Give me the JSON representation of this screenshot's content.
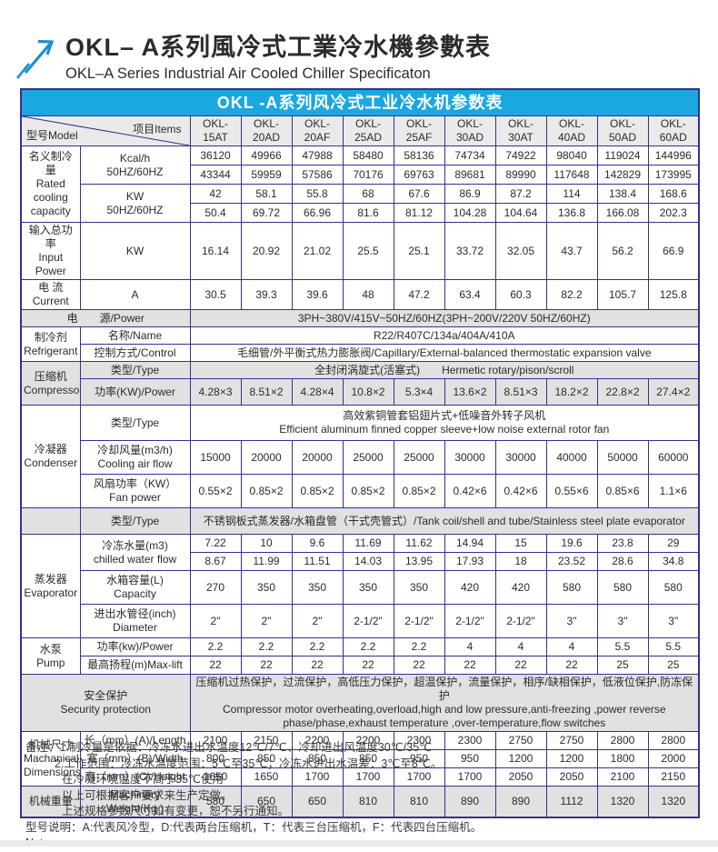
{
  "page": {
    "title_zh": "OKL– A系列風冷式工業冷水機參數表",
    "title_en": "OKL–A Series Industrial Air Cooled Chiller Specificaton"
  },
  "colors": {
    "accent_blue": "#1ba7e0",
    "border_navy": "#32338a",
    "band_gray": "#e1e1e1",
    "logo_blue": "#1a8fd1"
  },
  "table": {
    "banner": "OKL -A系列风冷式工业冷水机参数表",
    "corner": {
      "model": "型号Model",
      "items": "项目Items"
    },
    "models": [
      "OKL-\n15AT",
      "OKL-\n20AD",
      "OKL-\n20AF",
      "OKL-\n25AD",
      "OKL-\n25AF",
      "OKL-\n30AD",
      "OKL-\n30AT",
      "OKL-\n40AD",
      "OKL-\n50AD",
      "OKL-\n60AD"
    ],
    "rated": {
      "cat": "名义制冷量\nRated\ncooling\ncapacity",
      "kcal_label": "Kcal/h\n50HZ/60HZ",
      "kcal_50": [
        "36120",
        "49966",
        "47988",
        "58480",
        "58136",
        "74734",
        "74922",
        "98040",
        "119024",
        "144996"
      ],
      "kcal_60": [
        "43344",
        "59959",
        "57586",
        "70176",
        "69763",
        "89681",
        "89990",
        "117648",
        "142829",
        "173995"
      ],
      "kw_label": "KW\n50HZ/60HZ",
      "kw_50": [
        "42",
        "58.1",
        "55.8",
        "68",
        "67.6",
        "86.9",
        "87.2",
        "114",
        "138.4",
        "168.6"
      ],
      "kw_60": [
        "50.4",
        "69.72",
        "66.96",
        "81.6",
        "81.12",
        "104.28",
        "104.64",
        "136.8",
        "166.08",
        "202.3"
      ]
    },
    "input_power": {
      "cat": "输入总功率\nInput Power",
      "unit": "KW",
      "values": [
        "16.14",
        "20.92",
        "21.02",
        "25.5",
        "25.1",
        "33.72",
        "32.05",
        "43.7",
        "56.2",
        "66.9"
      ]
    },
    "current": {
      "cat": "电 流\nCurrent",
      "unit": "A",
      "values": [
        "30.5",
        "39.3",
        "39.6",
        "48",
        "47.2",
        "63.4",
        "60.3",
        "82.2",
        "105.7",
        "125.8"
      ]
    },
    "power_supply": {
      "label": "电　　源/Power",
      "value": "3PH~380V/415V~50HZ/60HZ(3PH~200V/220V  50HZ/60HZ)"
    },
    "refrigerant": {
      "cat": "制冷剂\nRefrigerant",
      "name_label": "名称/Name",
      "name_value": "R22/R407C/134a/404A/410A",
      "control_label": "控制方式/Control",
      "control_value": "毛细管/外平衡式热力膨胀阀/Capillary/External-balanced thermostatic expansion valve"
    },
    "compressor": {
      "cat": "压缩机\nCompressor",
      "type_label": "类型/Type",
      "type_value": "全封闭涡旋式(活塞式)　　Hermetic rotary/pison/scroll",
      "power_label": "功率(KW)/Power",
      "power_values": [
        "4.28×3",
        "8.51×2",
        "4.28×4",
        "10.8×2",
        "5.3×4",
        "13.6×2",
        "8.51×3",
        "18.2×2",
        "22.8×2",
        "27.4×2"
      ]
    },
    "condenser": {
      "cat": "冷凝器\nCondenser",
      "type_label": "类型/Type",
      "type_value": "高效紫铜管套铝翅片式+低噪音外转子风机\nEfficient aluminum finned copper sleeve+low noise external rotor fan",
      "air_label": "冷却风量(m3/h)\nCooling air flow",
      "air_values": [
        "15000",
        "20000",
        "20000",
        "25000",
        "25000",
        "30000",
        "30000",
        "40000",
        "50000",
        "60000"
      ],
      "fan_label": "风扇功率（KW）\nFan power",
      "fan_values": [
        "0.55×2",
        "0.85×2",
        "0.85×2",
        "0.85×2",
        "0.85×2",
        "0.42×6",
        "0.42×6",
        "0.55×6",
        "0.85×6",
        "1.1×6"
      ]
    },
    "evaporator": {
      "type_label": "类型/Type",
      "type_value": "不锈钢板式蒸发器/水箱盘管（干式壳管式）/Tank coil/shell and tube/Stainless steel plate evaporator",
      "cat": "蒸发器\nEvaporator",
      "chilled_label": "冷冻水量(m3)\nchilled water flow",
      "chilled_50": [
        "7.22",
        "10",
        "9.6",
        "11.69",
        "11.62",
        "14.94",
        "15",
        "19.6",
        "23.8",
        "29"
      ],
      "chilled_60": [
        "8.67",
        "11.99",
        "11.51",
        "14.03",
        "13.95",
        "17.93",
        "18",
        "23.52",
        "28.6",
        "34.8"
      ],
      "tank_label": "水箱容量(L)\nCapacity",
      "tank_values": [
        "270",
        "350",
        "350",
        "350",
        "350",
        "420",
        "420",
        "580",
        "580",
        "580"
      ],
      "dia_label": "进出水管径(inch)\nDiameter",
      "dia_values": [
        "2\"",
        "2\"",
        "2\"",
        "2-1/2\"",
        "2-1/2\"",
        "2-1/2\"",
        "2-1/2\"",
        "3\"",
        "3\"",
        "3\""
      ]
    },
    "pump": {
      "cat": "水泵\nPump",
      "power_label": "功率(kw)/Power",
      "power_values": [
        "2.2",
        "2.2",
        "2.2",
        "2.2",
        "2.2",
        "4",
        "4",
        "4",
        "5.5",
        "5.5"
      ],
      "lift_label": "最高扬程(m)Max-lift",
      "lift_values": [
        "22",
        "22",
        "22",
        "22",
        "22",
        "22",
        "22",
        "22",
        "25",
        "25"
      ]
    },
    "security": {
      "label": "安全保护\nSecurity protection",
      "value": "压缩机过热保护，过流保护，高低压力保护，超温保护，流量保护，相序/缺相保护，低液位保护,防冻保护\nCompressor motor overheating,overload,high and low pressure,anti-freezing ,power reverse\nphase/phase,exhaust temperature ,over-temperature,flow switches"
    },
    "dimensions": {
      "cat": "机械尺寸\nMachanical\nDimensions",
      "length_label": "长（mm）(A)/Length",
      "length_values": [
        "2100",
        "2150",
        "2200",
        "2200",
        "2300",
        "2300",
        "2750",
        "2750",
        "2800",
        "2800"
      ],
      "width_label": "宽（mm）(B)/Width",
      "width_values": [
        "800",
        "850",
        "850",
        "850",
        "950",
        "950",
        "1200",
        "1200",
        "1800",
        "2000"
      ],
      "height_label": "高（mm）(C)/Height",
      "height_values": [
        "1650",
        "1650",
        "1700",
        "1700",
        "1700",
        "1700",
        "2050",
        "2050",
        "2100",
        "2150"
      ]
    },
    "weight": {
      "cat": "机械重量",
      "label": "Machinery\nWeight(Kg )",
      "values": [
        "580",
        "650",
        "650",
        "810",
        "810",
        "890",
        "890",
        "1112",
        "1320",
        "1320"
      ]
    }
  },
  "notes": {
    "lines": [
      "备注：1.制冷量是依据：冷冻水进出水温度12℃/7℃、冷却进出风温度30℃/35℃",
      "2.工作范围：冷冻水温度范围：5℃至35℃；冷冻水进出水温差：3℃至8℃。",
      "在冷凝环境温度不高于35℃使用",
      "以上可根据客户要求来生产定做。",
      "上述规格参数尺寸如有变更，恕不另行通知。",
      "型号说明：A:代表风冷型，D:代表两台压缩机，T：代表三台压缩机，F：代表四台压缩机。",
      "Notes:"
    ]
  }
}
